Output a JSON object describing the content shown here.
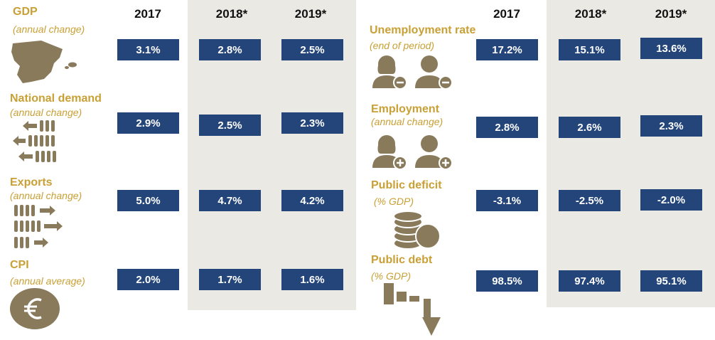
{
  "years": [
    "2017",
    "2018*",
    "2019*"
  ],
  "left": [
    {
      "label": "GDP",
      "sub": "(annual change)",
      "values": [
        "3.1%",
        "2.8%",
        "2.5%"
      ],
      "icon": "spain-map-icon"
    },
    {
      "label": "National demand",
      "sub": "(annual change)",
      "values": [
        "2.9%",
        "2.5%",
        "2.3%"
      ],
      "icon": "import-arrows-icon"
    },
    {
      "label": "Exports",
      "sub": "(annual change)",
      "values": [
        "5.0%",
        "4.7%",
        "4.2%"
      ],
      "icon": "export-arrows-icon"
    },
    {
      "label": "CPI",
      "sub": "(annual average)",
      "values": [
        "2.0%",
        "1.7%",
        "1.6%"
      ],
      "icon": "euro-coin-icon"
    }
  ],
  "right": [
    {
      "label": "Unemployment rate",
      "sub": "(end of period)",
      "values": [
        "17.2%",
        "15.1%",
        "13.6%"
      ],
      "icon": "people-minus-icon"
    },
    {
      "label": "Employment",
      "sub": "(annual change)",
      "values": [
        "2.8%",
        "2.6%",
        "2.3%"
      ],
      "icon": "people-plus-icon"
    },
    {
      "label": "Public deficit",
      "sub": "(% GDP)",
      "values": [
        "-3.1%",
        "-2.5%",
        "-2.0%"
      ],
      "icon": "coin-stack-icon"
    },
    {
      "label": "Public debt",
      "sub": "(% GDP)",
      "values": [
        "98.5%",
        "97.4%",
        "95.1%"
      ],
      "icon": "declining-bars-icon"
    }
  ],
  "colors": {
    "box": "#23457a",
    "label": "#c9a035",
    "icon": "#8a7a5c",
    "shade": "#ebe9e3"
  }
}
